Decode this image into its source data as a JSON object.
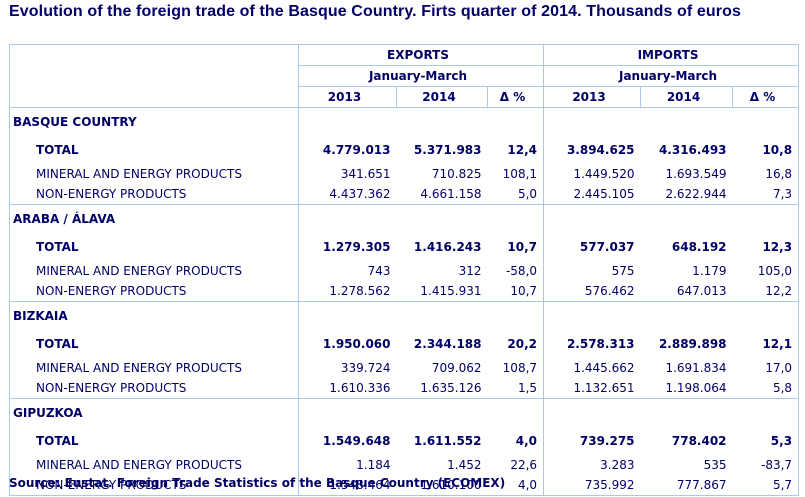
{
  "title": "Evolution of the foreign trade of the Basque Country. Firts quarter of 2014.  Thousands of euros",
  "header": {
    "exports": "EXPORTS",
    "imports": "IMPORTS",
    "period_exports": "January-March",
    "period_imports": "January-March",
    "years": [
      "2013",
      "2014",
      "Δ %",
      "2013",
      "2014",
      "Δ %"
    ]
  },
  "regions": [
    {
      "name": "BASQUE COUNTRY",
      "rows": [
        {
          "label": "TOTAL",
          "exp_2013": "4.779.013",
          "exp_2014": "5.371.983",
          "exp_delta": "12,4",
          "imp_2013": "3.894.625",
          "imp_2014": "4.316.493",
          "imp_delta": "10,8"
        },
        {
          "label": "MINERAL AND ENERGY PRODUCTS",
          "exp_2013": "341.651",
          "exp_2014": "710.825",
          "exp_delta": "108,1",
          "imp_2013": "1.449.520",
          "imp_2014": "1.693.549",
          "imp_delta": "16,8"
        },
        {
          "label": "NON-ENERGY PRODUCTS",
          "exp_2013": "4.437.362",
          "exp_2014": "4.661.158",
          "exp_delta": "5,0",
          "imp_2013": "2.445.105",
          "imp_2014": "2.622.944",
          "imp_delta": "7,3"
        }
      ]
    },
    {
      "name": "ARABA / ÁLAVA",
      "rows": [
        {
          "label": "TOTAL",
          "exp_2013": "1.279.305",
          "exp_2014": "1.416.243",
          "exp_delta": "10,7",
          "imp_2013": "577.037",
          "imp_2014": "648.192",
          "imp_delta": "12,3"
        },
        {
          "label": "MINERAL AND ENERGY PRODUCTS",
          "exp_2013": "743",
          "exp_2014": "312",
          "exp_delta": "-58,0",
          "imp_2013": "575",
          "imp_2014": "1.179",
          "imp_delta": "105,0"
        },
        {
          "label": "NON-ENERGY PRODUCTS",
          "exp_2013": "1.278.562",
          "exp_2014": "1.415.931",
          "exp_delta": "10,7",
          "imp_2013": "576.462",
          "imp_2014": "647.013",
          "imp_delta": "12,2"
        }
      ]
    },
    {
      "name": "BIZKAIA",
      "rows": [
        {
          "label": "TOTAL",
          "exp_2013": "1.950.060",
          "exp_2014": "2.344.188",
          "exp_delta": "20,2",
          "imp_2013": "2.578.313",
          "imp_2014": "2.889.898",
          "imp_delta": "12,1"
        },
        {
          "label": "MINERAL AND ENERGY PRODUCTS",
          "exp_2013": "339.724",
          "exp_2014": "709.062",
          "exp_delta": "108,7",
          "imp_2013": "1.445.662",
          "imp_2014": "1.691.834",
          "imp_delta": "17,0"
        },
        {
          "label": "NON-ENERGY PRODUCTS",
          "exp_2013": "1.610.336",
          "exp_2014": "1.635.126",
          "exp_delta": "1,5",
          "imp_2013": "1.132.651",
          "imp_2014": "1.198.064",
          "imp_delta": "5,8"
        }
      ]
    },
    {
      "name": "GIPUZKOA",
      "rows": [
        {
          "label": "TOTAL",
          "exp_2013": "1.549.648",
          "exp_2014": "1.611.552",
          "exp_delta": "4,0",
          "imp_2013": "739.275",
          "imp_2014": "778.402",
          "imp_delta": "5,3"
        },
        {
          "label": "MINERAL AND ENERGY PRODUCTS",
          "exp_2013": "1.184",
          "exp_2014": "1.452",
          "exp_delta": "22,6",
          "imp_2013": "3.283",
          "imp_2014": "535",
          "imp_delta": "-83,7"
        },
        {
          "label": "NON-ENERGY PRODUCTS",
          "exp_2013": "1.548.464",
          "exp_2014": "1.610.100",
          "exp_delta": "4,0",
          "imp_2013": "735.992",
          "imp_2014": "777.867",
          "imp_delta": "5,7"
        }
      ]
    }
  ],
  "source": "Source: Eustat. Foreign Trade Statistics of the Basque Country (ECOMEX)",
  "colors": {
    "text": "#000066",
    "border": "#a9c9e8",
    "background": "#ffffff"
  }
}
